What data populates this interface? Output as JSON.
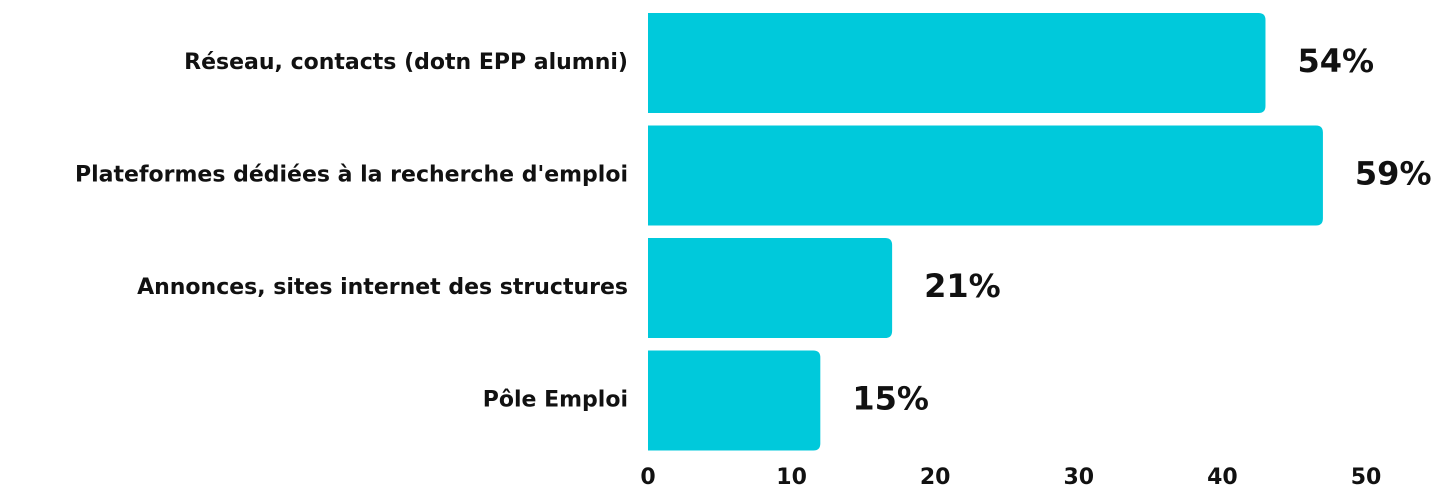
{
  "chart_data": {
    "type": "barh",
    "categories": [
      "Réseau, contacts (dotn EPP alumni)",
      "Plateformes dédiées à la recherche d'emploi",
      "Annonces, sites internet des structures",
      "Pôle Emploi"
    ],
    "values": [
      43,
      47,
      17,
      12
    ],
    "annotations": [
      "54%",
      "59%",
      "21%",
      "15%"
    ],
    "color": "#00c9db",
    "xlim": [
      0,
      50
    ],
    "xticks": [
      0,
      10,
      20,
      30,
      40,
      50
    ],
    "grid": false
  }
}
